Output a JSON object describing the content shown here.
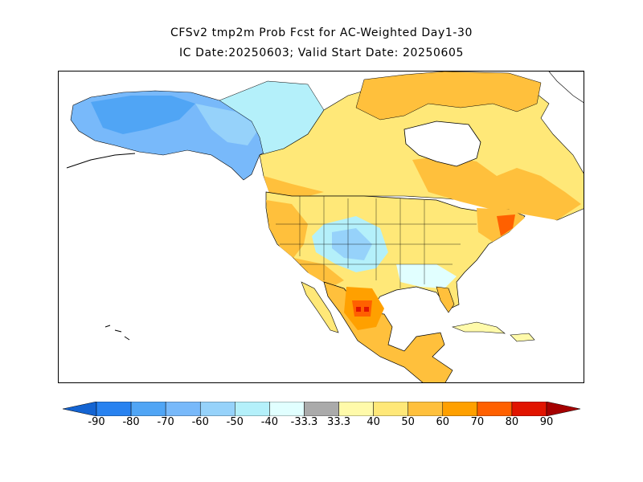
{
  "title_line1": "CFSv2 tmp2m Prob Fcst for AC-Weighted Day1-30",
  "title_line2": "IC Date:20250603; Valid Start Date: 20250605",
  "map": {
    "region": "North America"
  },
  "colorbar": {
    "bins": [
      {
        "color": "#1464d2"
      },
      {
        "color": "#2882f0"
      },
      {
        "color": "#50a5f5"
      },
      {
        "color": "#78b9fa"
      },
      {
        "color": "#96d2fa"
      },
      {
        "color": "#b4f0fa"
      },
      {
        "color": "#e1ffff"
      },
      {
        "color": "#aaaaaa"
      },
      {
        "color": "#fffaaa"
      },
      {
        "color": "#ffe878"
      },
      {
        "color": "#ffc03c"
      },
      {
        "color": "#ffa000"
      },
      {
        "color": "#ff6000"
      },
      {
        "color": "#e11400"
      },
      {
        "color": "#a50000"
      }
    ],
    "tick_labels": [
      "-90",
      "-80",
      "-70",
      "-60",
      "-50",
      "-40",
      "-33.3",
      "33.3",
      "40",
      "50",
      "60",
      "70",
      "80",
      "90"
    ]
  }
}
